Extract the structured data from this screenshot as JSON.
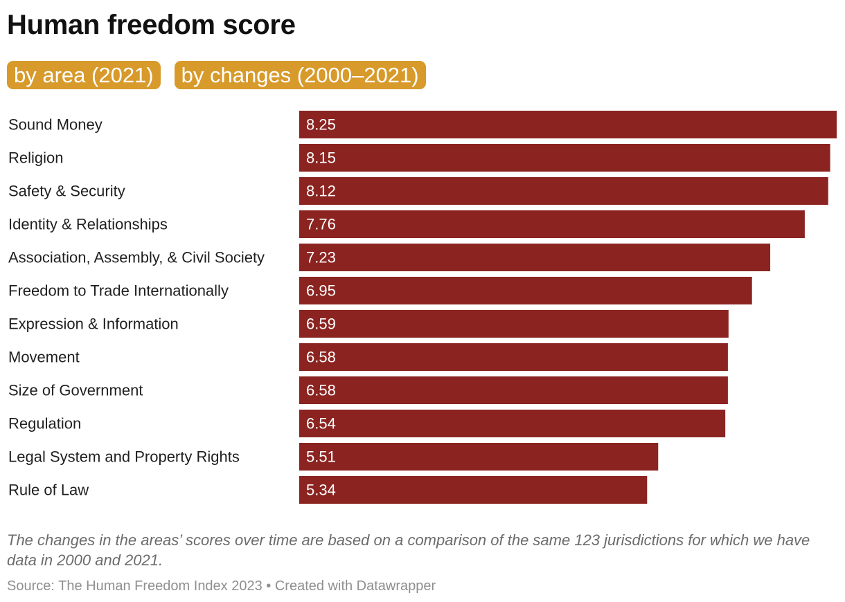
{
  "header": {
    "title": "Human freedom score"
  },
  "tabs": [
    {
      "label": "by area (2021)"
    },
    {
      "label": "by changes (2000–2021)"
    }
  ],
  "colors": {
    "bar": "#8b2421",
    "tab": "#d79a2b",
    "bar_label": "#ffffff",
    "category_label": "#1f1f1f"
  },
  "chart_data": {
    "type": "bar",
    "orientation": "horizontal",
    "title": "Human freedom score",
    "categories": [
      "Sound Money",
      "Religion",
      "Safety & Security",
      "Identity & Relationships",
      "Association, Assembly, & Civil Society",
      "Freedom to Trade Internationally",
      "Expression & Information",
      "Movement",
      "Size of Government",
      "Regulation",
      "Legal System and Property Rights",
      "Rule of Law"
    ],
    "values": [
      8.25,
      8.15,
      8.12,
      7.76,
      7.23,
      6.95,
      6.59,
      6.58,
      6.58,
      6.54,
      5.51,
      5.34
    ],
    "value_labels": [
      "8.25",
      "8.15",
      "8.12",
      "7.76",
      "7.23",
      "6.95",
      "6.59",
      "6.58",
      "6.58",
      "6.54",
      "5.51",
      "5.34"
    ],
    "xlim": [
      0,
      8.25
    ],
    "grid": false,
    "legend": "none"
  },
  "footer": {
    "notes": "The changes in the areas’ scores over time are based on a comparison of the same 123 jurisdictions for which we have data in 2000 and 2021.",
    "source": "Source: The Human Freedom Index 2023 • Created with Datawrapper"
  }
}
